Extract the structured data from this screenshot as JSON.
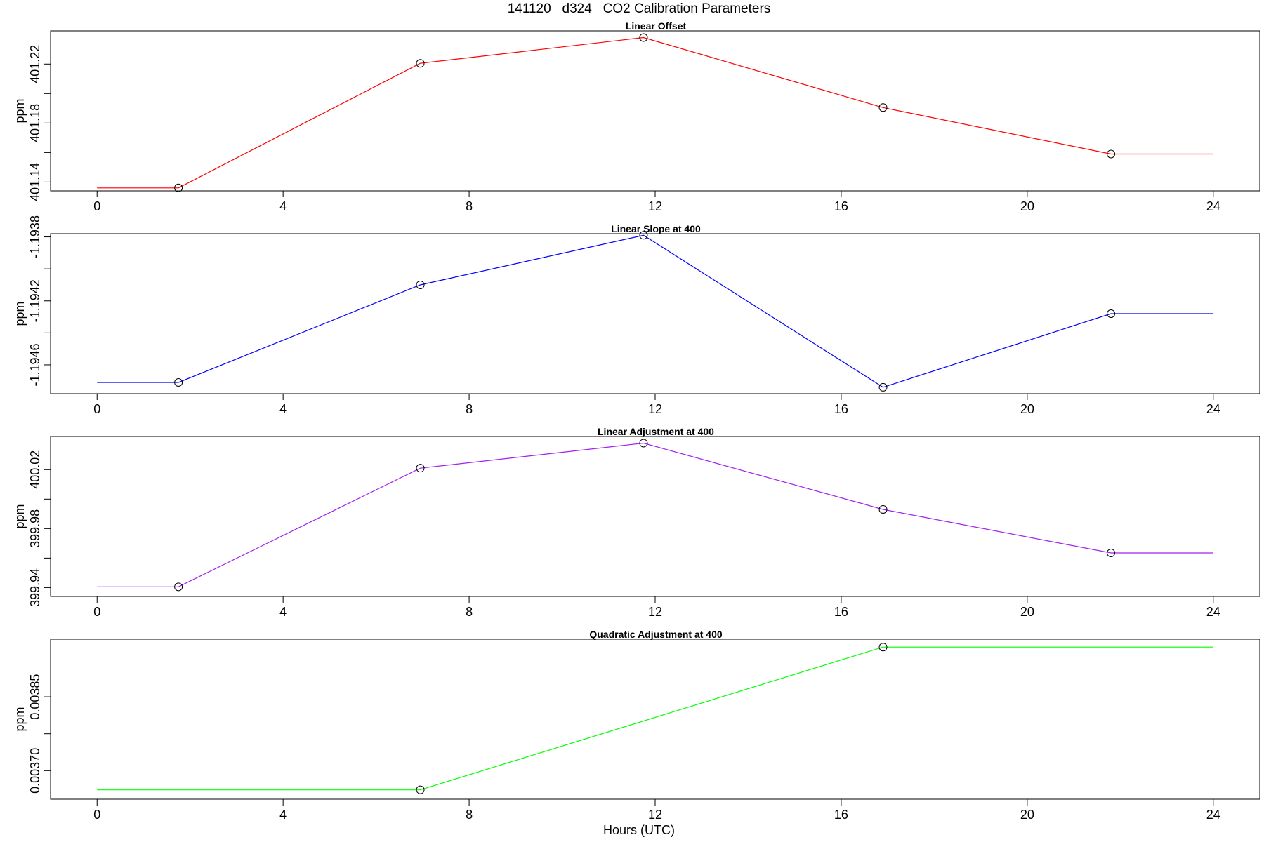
{
  "figure": {
    "title": "141120   d324   CO2 Calibration Parameters",
    "xlabel": "Hours (UTC)"
  },
  "chart_data": [
    {
      "type": "line",
      "title": "Linear Offset",
      "xlabel": "",
      "ylabel": "ppm",
      "xlim": [
        -1.0,
        25.0
      ],
      "ylim": [
        401.134,
        401.2425
      ],
      "xticks": [
        "0",
        "4",
        "8",
        "12",
        "16",
        "20",
        "24"
      ],
      "yticks": [
        "401.14",
        "401.18",
        "401.22"
      ],
      "color": "#ff0000",
      "marker_color": "#000000",
      "series": [
        {
          "x": [
            0,
            1.75,
            6.95,
            11.75,
            16.9,
            21.8,
            24
          ],
          "y": [
            401.136,
            401.136,
            401.2205,
            401.238,
            401.1905,
            401.159,
            401.159
          ],
          "markers": [
            false,
            true,
            true,
            true,
            true,
            true,
            false
          ]
        }
      ]
    },
    {
      "type": "line",
      "title": "Linear Slope at 400",
      "xlabel": "",
      "ylabel": "ppm",
      "xlim": [
        -1.0,
        25.0
      ],
      "ylim": [
        -1.19478,
        -1.19378
      ],
      "xticks": [
        "0",
        "4",
        "8",
        "12",
        "16",
        "20",
        "24"
      ],
      "yticks": [
        "-1.19460",
        "-1.19420",
        "-1.19380"
      ],
      "ytick_text": [
        "-1.1946",
        "-1.1942",
        "-1.1938"
      ],
      "color": "#0000ff",
      "marker_color": "#000000",
      "series": [
        {
          "x": [
            0,
            1.75,
            6.95,
            11.75,
            16.9,
            21.8,
            24
          ],
          "y": [
            -1.19471,
            -1.19471,
            -1.1941,
            -1.19379,
            -1.19474,
            -1.19428,
            -1.19428
          ],
          "markers": [
            false,
            true,
            true,
            true,
            true,
            true,
            false
          ]
        }
      ]
    },
    {
      "type": "line",
      "title": "Linear Adjustment at 400",
      "xlabel": "",
      "ylabel": "ppm",
      "xlim": [
        -1.0,
        25.0
      ],
      "ylim": [
        399.934,
        400.0425
      ],
      "xticks": [
        "0",
        "4",
        "8",
        "12",
        "16",
        "20",
        "24"
      ],
      "yticks": [
        "399.94",
        "399.98",
        "400.02"
      ],
      "color": "#a020f0",
      "marker_color": "#000000",
      "series": [
        {
          "x": [
            0,
            1.75,
            6.95,
            11.75,
            16.9,
            21.8,
            24
          ],
          "y": [
            399.9405,
            399.9405,
            400.021,
            400.038,
            399.993,
            399.9635,
            399.9635
          ],
          "markers": [
            false,
            true,
            true,
            true,
            true,
            true,
            false
          ]
        }
      ]
    },
    {
      "type": "line",
      "title": "Quadratic Adjustment at 400",
      "xlabel": "Hours (UTC)",
      "ylabel": "ppm",
      "xlim": [
        -1.0,
        25.0
      ],
      "ylim": [
        0.003642,
        0.003967
      ],
      "xticks": [
        "0",
        "4",
        "8",
        "12",
        "16",
        "20",
        "24"
      ],
      "yticks": [
        "0.00370",
        "0.00385"
      ],
      "color": "#00ff00",
      "marker_color": "#000000",
      "series": [
        {
          "x": [
            0,
            6.95,
            16.9,
            24
          ],
          "y": [
            0.003661,
            0.003661,
            0.003951,
            0.003951
          ],
          "markers": [
            false,
            true,
            true,
            false
          ]
        }
      ]
    }
  ]
}
